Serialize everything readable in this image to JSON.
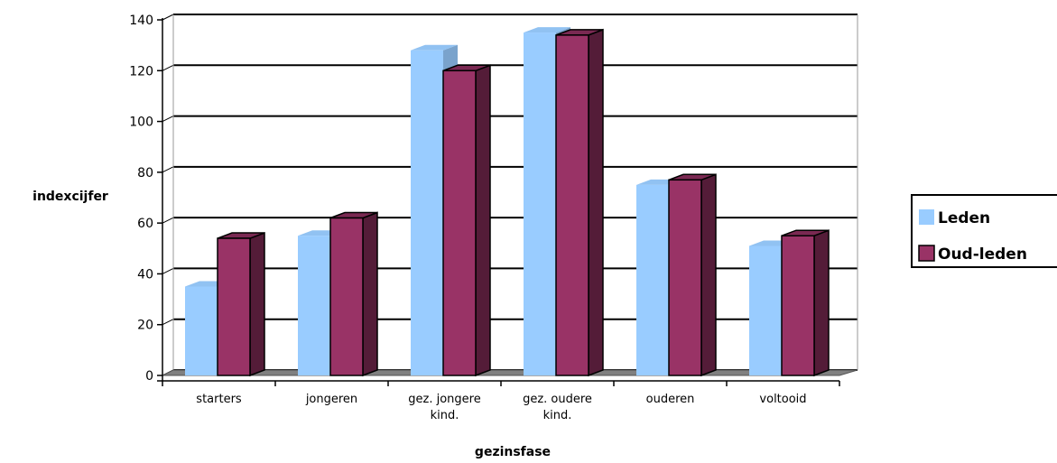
{
  "chart_data": {
    "type": "bar",
    "categories": [
      [
        "starters"
      ],
      [
        "jongeren"
      ],
      [
        "gez. jongere",
        "kind."
      ],
      [
        "gez. oudere",
        "kind."
      ],
      [
        "ouderen"
      ],
      [
        "voltooid"
      ]
    ],
    "series": [
      {
        "name": "Leden",
        "values": [
          35,
          55,
          128,
          135,
          75,
          51
        ],
        "color": "#99CCFF"
      },
      {
        "name": "Oud-leden",
        "values": [
          54,
          62,
          120,
          134,
          77,
          55
        ],
        "color": "#993366"
      }
    ],
    "ylim": [
      0,
      140
    ],
    "yticks": [
      0,
      20,
      40,
      60,
      80,
      100,
      120,
      140
    ],
    "xlabel": "gezinsfase",
    "ylabel": "indexcijfer",
    "grid": true,
    "legend": "right",
    "style": "3d-clustered-column"
  }
}
